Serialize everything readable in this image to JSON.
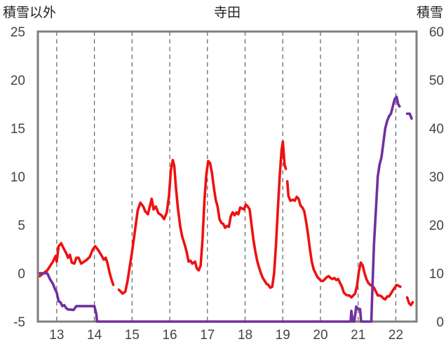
{
  "chart_data": {
    "type": "line",
    "title": "寺田",
    "ylabel_left": "積雪以外",
    "ylabel_right": "積雪",
    "xlim": [
      12.5,
      22.55
    ],
    "ylim_left": [
      -5,
      25
    ],
    "ylim_right": [
      0,
      60
    ],
    "x_ticks": [
      13,
      14,
      15,
      16,
      17,
      18,
      19,
      20,
      21,
      22
    ],
    "y_ticks_left": [
      -5,
      0,
      5,
      10,
      15,
      20,
      25
    ],
    "y_ticks_right": [
      0,
      10,
      20,
      30,
      40,
      50,
      60
    ],
    "grid": "vertical-dashed",
    "series": [
      {
        "axis": "left",
        "color": "#ee1111",
        "segments": [
          [
            [
              12.55,
              -0.3
            ],
            [
              12.75,
              0.3
            ],
            [
              12.9,
              1.2
            ],
            [
              12.97,
              1.8
            ],
            [
              13.0,
              1.2
            ],
            [
              13.05,
              2.8
            ],
            [
              13.12,
              3.1
            ],
            [
              13.18,
              2.6
            ],
            [
              13.25,
              2.1
            ],
            [
              13.3,
              1.6
            ],
            [
              13.35,
              1.9
            ],
            [
              13.4,
              1.1
            ],
            [
              13.47,
              1.0
            ],
            [
              13.52,
              1.6
            ],
            [
              13.58,
              1.6
            ],
            [
              13.65,
              1.0
            ],
            [
              13.73,
              1.2
            ],
            [
              13.8,
              1.4
            ],
            [
              13.88,
              1.7
            ],
            [
              13.95,
              2.4
            ],
            [
              14.02,
              2.8
            ],
            [
              14.1,
              2.4
            ],
            [
              14.18,
              1.9
            ],
            [
              14.25,
              1.4
            ],
            [
              14.3,
              1.6
            ],
            [
              14.35,
              1.0
            ],
            [
              14.4,
              0.1
            ],
            [
              14.45,
              -0.6
            ],
            [
              14.5,
              -1.2
            ]
          ],
          [
            [
              14.65,
              -1.7
            ],
            [
              14.75,
              -2.1
            ],
            [
              14.82,
              -1.9
            ],
            [
              14.88,
              -0.8
            ],
            [
              14.93,
              0.5
            ],
            [
              15.0,
              2.2
            ],
            [
              15.07,
              4.2
            ],
            [
              15.15,
              6.5
            ],
            [
              15.22,
              7.3
            ],
            [
              15.3,
              6.9
            ],
            [
              15.35,
              6.4
            ],
            [
              15.42,
              6.1
            ],
            [
              15.47,
              6.9
            ],
            [
              15.52,
              7.7
            ],
            [
              15.57,
              6.6
            ],
            [
              15.63,
              6.9
            ],
            [
              15.7,
              6.2
            ],
            [
              15.78,
              6.0
            ],
            [
              15.85,
              5.6
            ],
            [
              15.92,
              6.3
            ],
            [
              15.98,
              8.0
            ],
            [
              16.03,
              10.7
            ],
            [
              16.08,
              11.7
            ],
            [
              16.12,
              11.1
            ],
            [
              16.17,
              8.6
            ],
            [
              16.22,
              6.6
            ],
            [
              16.28,
              4.8
            ],
            [
              16.33,
              3.8
            ],
            [
              16.4,
              2.9
            ],
            [
              16.45,
              2.2
            ],
            [
              16.5,
              1.2
            ],
            [
              16.55,
              1.3
            ],
            [
              16.6,
              1.0
            ],
            [
              16.67,
              1.2
            ],
            [
              16.72,
              0.5
            ],
            [
              16.77,
              0.3
            ],
            [
              16.82,
              0.8
            ],
            [
              16.87,
              3.5
            ],
            [
              16.92,
              7.5
            ],
            [
              16.97,
              10.2
            ],
            [
              17.02,
              11.6
            ],
            [
              17.07,
              11.4
            ],
            [
              17.12,
              10.4
            ],
            [
              17.17,
              8.9
            ],
            [
              17.22,
              7.6
            ],
            [
              17.27,
              6.9
            ],
            [
              17.32,
              5.6
            ],
            [
              17.37,
              5.2
            ],
            [
              17.42,
              5.1
            ],
            [
              17.47,
              4.7
            ],
            [
              17.52,
              4.9
            ],
            [
              17.57,
              4.8
            ],
            [
              17.62,
              5.9
            ],
            [
              17.67,
              6.3
            ],
            [
              17.72,
              6.0
            ],
            [
              17.77,
              6.3
            ],
            [
              17.82,
              6.1
            ],
            [
              17.87,
              6.8
            ],
            [
              17.92,
              6.7
            ],
            [
              17.97,
              6.6
            ],
            [
              18.02,
              7.1
            ],
            [
              18.07,
              6.9
            ],
            [
              18.12,
              6.6
            ],
            [
              18.17,
              5.0
            ],
            [
              18.22,
              3.5
            ],
            [
              18.27,
              2.3
            ],
            [
              18.32,
              1.3
            ],
            [
              18.37,
              0.6
            ],
            [
              18.42,
              0.0
            ],
            [
              18.47,
              -0.5
            ],
            [
              18.52,
              -0.8
            ],
            [
              18.57,
              -1.1
            ],
            [
              18.62,
              -1.2
            ],
            [
              18.67,
              -1.5
            ],
            [
              18.72,
              -1.4
            ],
            [
              18.77,
              0.0
            ],
            [
              18.82,
              3.0
            ],
            [
              18.87,
              6.7
            ],
            [
              18.92,
              10.2
            ],
            [
              18.97,
              12.8
            ],
            [
              19.0,
              13.6
            ],
            [
              19.05,
              11.2
            ],
            [
              19.08,
              10.8
            ]
          ],
          [
            [
              19.12,
              9.5
            ],
            [
              19.15,
              8.0
            ],
            [
              19.2,
              7.5
            ],
            [
              19.27,
              7.6
            ],
            [
              19.32,
              7.5
            ],
            [
              19.37,
              7.9
            ],
            [
              19.42,
              7.7
            ],
            [
              19.47,
              7.0
            ],
            [
              19.52,
              6.8
            ],
            [
              19.57,
              6.4
            ],
            [
              19.62,
              5.3
            ],
            [
              19.67,
              4.0
            ],
            [
              19.72,
              2.5
            ],
            [
              19.77,
              1.2
            ],
            [
              19.82,
              0.4
            ],
            [
              19.87,
              0.0
            ],
            [
              19.92,
              -0.4
            ],
            [
              19.97,
              -0.6
            ],
            [
              20.02,
              -0.8
            ],
            [
              20.07,
              -0.8
            ],
            [
              20.12,
              -0.6
            ],
            [
              20.17,
              -0.4
            ],
            [
              20.22,
              -0.3
            ],
            [
              20.27,
              -0.5
            ],
            [
              20.32,
              -0.6
            ],
            [
              20.37,
              -0.5
            ],
            [
              20.42,
              -0.7
            ],
            [
              20.47,
              -0.6
            ],
            [
              20.52,
              -1.0
            ],
            [
              20.57,
              -1.4
            ],
            [
              20.62,
              -2.0
            ],
            [
              20.67,
              -2.2
            ],
            [
              20.72,
              -2.3
            ],
            [
              20.77,
              -2.3
            ],
            [
              20.82,
              -2.5
            ],
            [
              20.87,
              -2.3
            ],
            [
              20.92,
              -2.1
            ],
            [
              20.97,
              -1.3
            ],
            [
              21.02,
              0.2
            ],
            [
              21.07,
              1.1
            ],
            [
              21.12,
              0.8
            ],
            [
              21.17,
              0.0
            ],
            [
              21.22,
              -0.6
            ],
            [
              21.27,
              -1.0
            ],
            [
              21.32,
              -1.2
            ],
            [
              21.37,
              -1.3
            ],
            [
              21.42,
              -1.5
            ],
            [
              21.47,
              -1.9
            ],
            [
              21.52,
              -2.3
            ],
            [
              21.57,
              -2.3
            ],
            [
              21.62,
              -2.4
            ],
            [
              21.67,
              -2.6
            ],
            [
              21.72,
              -2.7
            ],
            [
              21.77,
              -2.4
            ],
            [
              21.82,
              -2.4
            ],
            [
              21.87,
              -2.1
            ],
            [
              21.92,
              -1.8
            ],
            [
              21.97,
              -1.5
            ],
            [
              22.02,
              -1.2
            ],
            [
              22.07,
              -1.3
            ],
            [
              22.12,
              -1.4
            ]
          ],
          [
            [
              22.3,
              -2.5
            ],
            [
              22.35,
              -3.1
            ],
            [
              22.4,
              -3.3
            ],
            [
              22.45,
              -3.0
            ]
          ]
        ]
      },
      {
        "axis": "right",
        "color": "#7030a0",
        "segments": [
          [
            [
              12.55,
              10.0
            ],
            [
              12.75,
              10.0
            ],
            [
              12.82,
              8.8
            ],
            [
              12.9,
              7.8
            ],
            [
              12.95,
              6.8
            ],
            [
              13.0,
              6.0
            ],
            [
              13.05,
              4.2
            ],
            [
              13.1,
              4.0
            ],
            [
              13.15,
              3.2
            ],
            [
              13.2,
              3.4
            ],
            [
              13.25,
              2.8
            ],
            [
              13.3,
              2.5
            ],
            [
              13.35,
              2.5
            ],
            [
              13.45,
              2.4
            ],
            [
              13.52,
              3.2
            ],
            [
              13.6,
              3.2
            ],
            [
              13.7,
              3.2
            ],
            [
              13.8,
              3.2
            ],
            [
              13.9,
              3.2
            ],
            [
              14.0,
              3.2
            ],
            [
              14.05,
              1.6
            ],
            [
              14.07,
              0.0
            ],
            [
              14.5,
              0.0
            ],
            [
              15.0,
              0.0
            ],
            [
              16.0,
              0.0
            ],
            [
              17.0,
              0.0
            ],
            [
              18.0,
              0.0
            ],
            [
              19.0,
              0.0
            ],
            [
              20.0,
              0.0
            ],
            [
              20.8,
              0.0
            ],
            [
              20.82,
              2.2
            ],
            [
              20.86,
              0.0
            ],
            [
              20.9,
              0.0
            ],
            [
              20.95,
              3.1
            ],
            [
              21.0,
              2.6
            ],
            [
              21.05,
              2.6
            ],
            [
              21.08,
              0.0
            ],
            [
              21.35,
              0.0
            ],
            [
              21.38,
              7.0
            ],
            [
              21.42,
              16.0
            ],
            [
              21.47,
              23.0
            ],
            [
              21.52,
              30.0
            ],
            [
              21.57,
              32.5
            ],
            [
              21.62,
              34.0
            ],
            [
              21.67,
              37.0
            ],
            [
              21.72,
              40.0
            ],
            [
              21.77,
              41.5
            ],
            [
              21.82,
              42.5
            ],
            [
              21.87,
              43.0
            ],
            [
              21.92,
              44.5
            ],
            [
              21.97,
              46.0
            ],
            [
              22.02,
              46.5
            ],
            [
              22.06,
              45.0
            ],
            [
              22.1,
              44.5
            ]
          ],
          [
            [
              22.3,
              43.0
            ],
            [
              22.37,
              43.0
            ],
            [
              22.42,
              42.0
            ]
          ]
        ]
      }
    ]
  }
}
